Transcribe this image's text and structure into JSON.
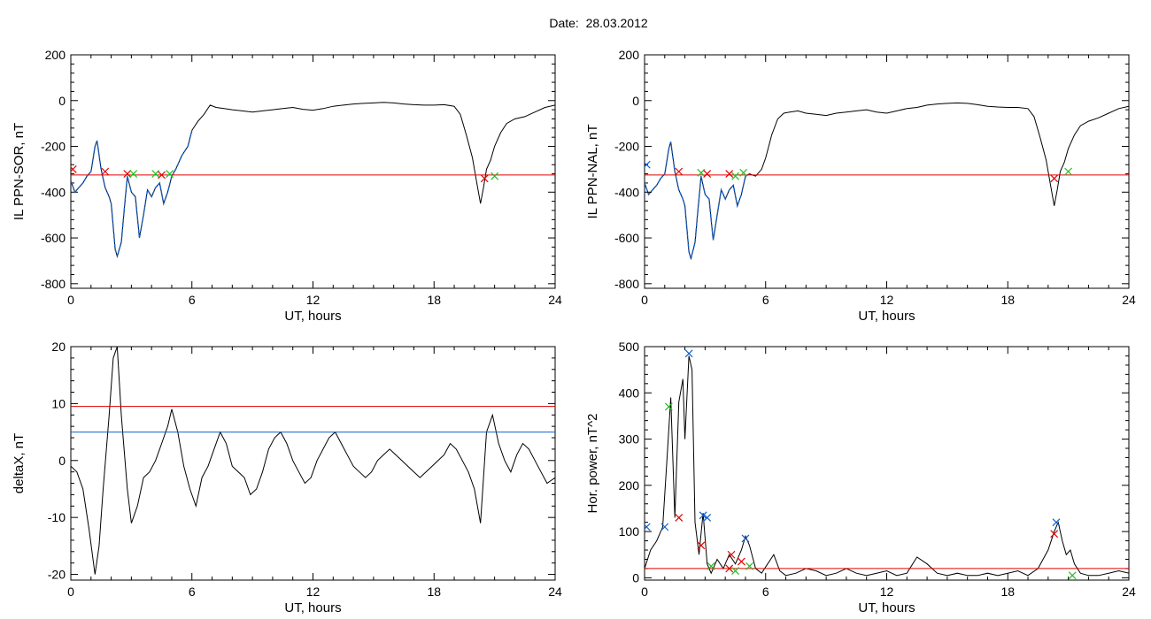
{
  "header": {
    "title": "Date:  28.03.2012"
  },
  "colors": {
    "trace": "#000000",
    "threshold": "#e00000",
    "blue": "#1060d0",
    "green": "#20c020",
    "red_marker": "#e00000",
    "blue_marker": "#1060d0"
  },
  "chart_data": [
    {
      "type": "line",
      "ylabel": "IL PPN-SOR, nT",
      "xlabel": "UT, hours",
      "xlim": [
        0,
        24
      ],
      "ylim": [
        -820,
        200
      ],
      "xticks": [
        0,
        6,
        12,
        18,
        24
      ],
      "yticks": [
        -800,
        -600,
        -400,
        -200,
        0,
        200
      ],
      "threshold": -325,
      "series": [
        {
          "values_x": [
            0,
            0.2,
            0.4,
            0.6,
            0.8,
            1.0,
            1.2,
            1.3,
            1.5,
            1.7,
            1.9,
            2.0,
            2.2,
            2.3,
            2.5,
            2.6,
            2.8,
            3.0,
            3.2,
            3.4,
            3.6,
            3.8,
            4.0,
            4.2,
            4.4,
            4.6,
            4.8,
            5.0,
            5.2,
            5.5,
            5.8,
            6.0,
            6.3,
            6.6,
            6.9,
            7.2,
            7.6,
            8.0,
            8.5,
            9.0,
            9.5,
            10.0,
            10.5,
            11.0,
            11.5,
            12.0,
            12.5,
            13.0,
            13.5,
            14.0,
            14.5,
            15.0,
            15.5,
            16.0,
            16.5,
            17.0,
            17.5,
            18.0,
            18.5,
            19.0,
            19.3,
            19.6,
            19.9,
            20.1,
            20.3,
            20.45,
            20.6,
            20.8,
            21.0,
            21.3,
            21.6,
            22.0,
            22.5,
            23.0,
            23.5,
            24.0
          ],
          "values": [
            -350,
            -400,
            -380,
            -360,
            -330,
            -310,
            -200,
            -175,
            -300,
            -380,
            -420,
            -450,
            -650,
            -680,
            -620,
            -520,
            -330,
            -400,
            -420,
            -600,
            -500,
            -390,
            -420,
            -380,
            -360,
            -450,
            -400,
            -330,
            -300,
            -240,
            -200,
            -130,
            -90,
            -60,
            -20,
            -30,
            -35,
            -40,
            -45,
            -50,
            -45,
            -40,
            -35,
            -30,
            -38,
            -42,
            -35,
            -25,
            -20,
            -15,
            -12,
            -10,
            -8,
            -10,
            -15,
            -18,
            -20,
            -20,
            -18,
            -25,
            -60,
            -150,
            -250,
            -350,
            -450,
            -380,
            -300,
            -260,
            -200,
            -140,
            -100,
            -80,
            -70,
            -50,
            -30,
            -20
          ],
          "color": "#000000"
        }
      ],
      "blue_span": [
        0,
        6.0
      ],
      "markers": [
        {
          "x": 0.1,
          "y": -300,
          "color": "#e00000"
        },
        {
          "x": 1.7,
          "y": -310,
          "color": "#e00000"
        },
        {
          "x": 2.8,
          "y": -320,
          "color": "#e00000"
        },
        {
          "x": 3.1,
          "y": -320,
          "color": "#20c020"
        },
        {
          "x": 4.2,
          "y": -320,
          "color": "#20c020"
        },
        {
          "x": 4.5,
          "y": -325,
          "color": "#e00000"
        },
        {
          "x": 4.9,
          "y": -320,
          "color": "#20c020"
        },
        {
          "x": 20.5,
          "y": -340,
          "color": "#e00000"
        },
        {
          "x": 21.0,
          "y": -330,
          "color": "#20c020"
        }
      ]
    },
    {
      "type": "line",
      "ylabel": "IL PPN-NAL, nT",
      "xlabel": "UT, hours",
      "xlim": [
        0,
        24
      ],
      "ylim": [
        -820,
        200
      ],
      "xticks": [
        0,
        6,
        12,
        18,
        24
      ],
      "yticks": [
        -800,
        -600,
        -400,
        -200,
        0,
        200
      ],
      "threshold": -325,
      "series": [
        {
          "values_x": [
            0,
            0.2,
            0.4,
            0.6,
            0.8,
            1.0,
            1.2,
            1.3,
            1.5,
            1.7,
            1.9,
            2.0,
            2.2,
            2.3,
            2.5,
            2.6,
            2.8,
            3.0,
            3.2,
            3.4,
            3.6,
            3.8,
            4.0,
            4.2,
            4.4,
            4.6,
            4.8,
            5.0,
            5.2,
            5.5,
            5.8,
            6.0,
            6.3,
            6.6,
            6.9,
            7.2,
            7.6,
            8.0,
            8.5,
            9.0,
            9.5,
            10.0,
            10.5,
            11.0,
            11.5,
            12.0,
            12.5,
            13.0,
            13.5,
            14.0,
            14.5,
            15.0,
            15.5,
            16.0,
            16.5,
            17.0,
            17.5,
            18.0,
            18.5,
            19.0,
            19.3,
            19.6,
            19.9,
            20.1,
            20.3,
            20.45,
            20.6,
            20.8,
            21.0,
            21.3,
            21.6,
            22.0,
            22.5,
            23.0,
            23.5,
            24.0
          ],
          "values": [
            -360,
            -410,
            -390,
            -370,
            -340,
            -320,
            -210,
            -180,
            -310,
            -390,
            -430,
            -460,
            -660,
            -690,
            -620,
            -520,
            -330,
            -410,
            -430,
            -610,
            -500,
            -390,
            -430,
            -390,
            -370,
            -460,
            -410,
            -330,
            -320,
            -330,
            -300,
            -250,
            -150,
            -80,
            -55,
            -50,
            -45,
            -55,
            -60,
            -65,
            -55,
            -50,
            -45,
            -40,
            -50,
            -55,
            -45,
            -35,
            -30,
            -20,
            -15,
            -12,
            -10,
            -12,
            -18,
            -25,
            -28,
            -30,
            -30,
            -35,
            -70,
            -160,
            -260,
            -360,
            -460,
            -390,
            -310,
            -270,
            -210,
            -150,
            -110,
            -90,
            -75,
            -55,
            -35,
            -25
          ],
          "color": "#000000"
        }
      ],
      "blue_span": [
        0,
        5.2
      ],
      "markers": [
        {
          "x": 0.1,
          "y": -280,
          "color": "#1060d0"
        },
        {
          "x": 1.7,
          "y": -310,
          "color": "#e00000"
        },
        {
          "x": 2.8,
          "y": -315,
          "color": "#20c020"
        },
        {
          "x": 3.1,
          "y": -320,
          "color": "#e00000"
        },
        {
          "x": 4.2,
          "y": -320,
          "color": "#e00000"
        },
        {
          "x": 4.5,
          "y": -330,
          "color": "#20c020"
        },
        {
          "x": 4.9,
          "y": -315,
          "color": "#20c020"
        },
        {
          "x": 20.3,
          "y": -340,
          "color": "#e00000"
        },
        {
          "x": 21.0,
          "y": -310,
          "color": "#20c020"
        }
      ]
    },
    {
      "type": "line",
      "ylabel": "deltaX, nT",
      "xlabel": "UT, hours",
      "xlim": [
        0,
        24
      ],
      "ylim": [
        -21,
        20
      ],
      "xticks": [
        0,
        6,
        12,
        18,
        24
      ],
      "yticks": [
        -20,
        -10,
        0,
        10,
        20
      ],
      "hlines": [
        {
          "y": 9.5,
          "color": "#e00000"
        },
        {
          "y": 5,
          "color": "#1060d0"
        }
      ],
      "series": [
        {
          "values_x": [
            0,
            0.3,
            0.6,
            0.9,
            1.2,
            1.4,
            1.6,
            1.9,
            2.1,
            2.3,
            2.5,
            2.8,
            3.0,
            3.3,
            3.6,
            3.9,
            4.2,
            4.5,
            4.8,
            5.0,
            5.3,
            5.6,
            5.9,
            6.2,
            6.5,
            6.8,
            7.1,
            7.4,
            7.7,
            8.0,
            8.3,
            8.6,
            8.9,
            9.2,
            9.5,
            9.8,
            10.1,
            10.4,
            10.7,
            11.0,
            11.3,
            11.6,
            11.9,
            12.2,
            12.5,
            12.8,
            13.1,
            13.4,
            13.7,
            14.0,
            14.3,
            14.6,
            14.9,
            15.2,
            15.5,
            15.8,
            16.1,
            16.4,
            16.7,
            17.0,
            17.3,
            17.6,
            17.9,
            18.2,
            18.5,
            18.8,
            19.1,
            19.4,
            19.7,
            20.0,
            20.3,
            20.6,
            20.9,
            21.2,
            21.5,
            21.8,
            22.1,
            22.4,
            22.7,
            23.0,
            23.3,
            23.6,
            24.0
          ],
          "values": [
            -1,
            -2,
            -5,
            -12,
            -20,
            -15,
            -5,
            8,
            18,
            20,
            8,
            -5,
            -11,
            -8,
            -3,
            -2,
            0,
            3,
            6,
            9,
            5,
            -1,
            -5,
            -8,
            -3,
            -1,
            2,
            5,
            3,
            -1,
            -2,
            -3,
            -6,
            -5,
            -2,
            2,
            4,
            5,
            3,
            0,
            -2,
            -4,
            -3,
            0,
            2,
            4,
            5,
            3,
            1,
            -1,
            -2,
            -3,
            -2,
            0,
            1,
            2,
            1,
            0,
            -1,
            -2,
            -3,
            -2,
            -1,
            0,
            1,
            3,
            2,
            0,
            -2,
            -5,
            -11,
            5,
            8,
            3,
            0,
            -2,
            1,
            3,
            2,
            0,
            -2,
            -4,
            -3
          ],
          "color": "#000000"
        }
      ]
    },
    {
      "type": "line",
      "ylabel": "Hor. power, nT^2",
      "xlabel": "UT, hours",
      "xlim": [
        0,
        24
      ],
      "ylim": [
        -5,
        500
      ],
      "xticks": [
        0,
        6,
        12,
        18,
        24
      ],
      "yticks": [
        0,
        100,
        200,
        300,
        400,
        500
      ],
      "threshold": 20,
      "series": [
        {
          "values_x": [
            0,
            0.3,
            0.6,
            0.9,
            1.1,
            1.3,
            1.5,
            1.7,
            1.9,
            2.0,
            2.2,
            2.35,
            2.5,
            2.7,
            2.9,
            3.1,
            3.3,
            3.6,
            3.9,
            4.2,
            4.5,
            4.8,
            5.0,
            5.2,
            5.5,
            5.8,
            6.1,
            6.4,
            6.7,
            7.0,
            7.5,
            8.0,
            8.5,
            9.0,
            9.5,
            10.0,
            10.5,
            11.0,
            11.5,
            12.0,
            12.5,
            13.0,
            13.5,
            14.0,
            14.5,
            15.0,
            15.5,
            16.0,
            16.5,
            17.0,
            17.5,
            18.0,
            18.5,
            19.0,
            19.5,
            20.0,
            20.3,
            20.5,
            20.7,
            20.9,
            21.1,
            21.3,
            21.6,
            22.0,
            22.5,
            23.0,
            23.5,
            24.0
          ],
          "values": [
            20,
            60,
            80,
            110,
            250,
            390,
            130,
            380,
            430,
            300,
            480,
            450,
            120,
            50,
            140,
            30,
            10,
            40,
            20,
            50,
            30,
            60,
            90,
            70,
            20,
            10,
            30,
            50,
            15,
            5,
            10,
            20,
            15,
            5,
            10,
            20,
            10,
            5,
            10,
            15,
            5,
            10,
            45,
            30,
            10,
            5,
            10,
            5,
            5,
            10,
            5,
            10,
            15,
            5,
            20,
            60,
            100,
            120,
            80,
            50,
            60,
            30,
            10,
            5,
            5,
            10,
            15,
            10
          ],
          "color": "#000000"
        }
      ],
      "markers": [
        {
          "x": 0.1,
          "y": 110,
          "color": "#1060d0"
        },
        {
          "x": 1.0,
          "y": 110,
          "color": "#1060d0"
        },
        {
          "x": 1.2,
          "y": 370,
          "color": "#20c020"
        },
        {
          "x": 1.7,
          "y": 130,
          "color": "#e00000"
        },
        {
          "x": 2.2,
          "y": 485,
          "color": "#1060d0"
        },
        {
          "x": 2.8,
          "y": 70,
          "color": "#e00000"
        },
        {
          "x": 2.9,
          "y": 135,
          "color": "#1060d0"
        },
        {
          "x": 3.1,
          "y": 130,
          "color": "#1060d0"
        },
        {
          "x": 3.3,
          "y": 25,
          "color": "#20c020"
        },
        {
          "x": 4.2,
          "y": 20,
          "color": "#e00000"
        },
        {
          "x": 4.3,
          "y": 50,
          "color": "#e00000"
        },
        {
          "x": 4.5,
          "y": 15,
          "color": "#20c020"
        },
        {
          "x": 4.8,
          "y": 35,
          "color": "#e00000"
        },
        {
          "x": 5.0,
          "y": 85,
          "color": "#1060d0"
        },
        {
          "x": 5.2,
          "y": 25,
          "color": "#20c020"
        },
        {
          "x": 20.3,
          "y": 95,
          "color": "#e00000"
        },
        {
          "x": 20.4,
          "y": 120,
          "color": "#1060d0"
        },
        {
          "x": 21.2,
          "y": 5,
          "color": "#20c020"
        }
      ]
    }
  ]
}
